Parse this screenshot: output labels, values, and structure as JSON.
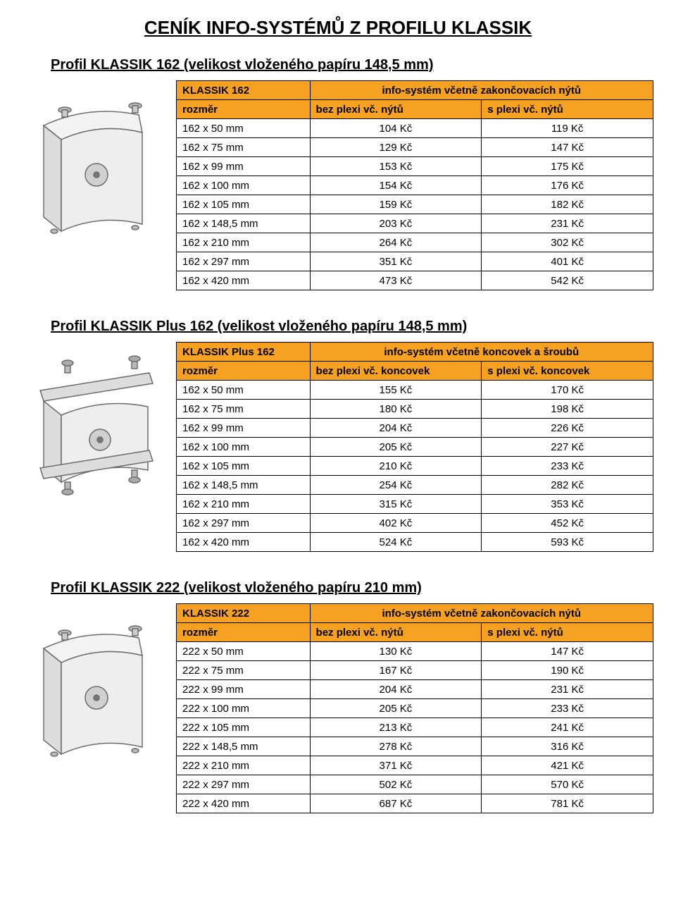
{
  "page_title": "CENÍK INFO-SYSTÉMŮ Z PROFILU KLASSIK",
  "colors": {
    "header_bg": "#f7a120",
    "border": "#000000",
    "text": "#000000",
    "illus_stroke": "#6b6b6b",
    "illus_fill": "#e8e8e8"
  },
  "fonts": {
    "page_title_size": 26,
    "section_title_size": 20,
    "table_size": 15
  },
  "sections": [
    {
      "title": "Profil KLASSIK 162 (velikost vloženého papíru 148,5 mm)",
      "name_label": "KLASSIK 162",
      "rozmer_label": "rozměr",
      "super_header": "info-systém včetně zakončovacích nýtů",
      "col1": "bez plexi vč. nýtů",
      "col2": "s plexi vč. nýtů",
      "rows": [
        {
          "r": "162 x 50 mm",
          "a": "104 Kč",
          "b": "119 Kč"
        },
        {
          "r": "162 x 75 mm",
          "a": "129 Kč",
          "b": "147 Kč"
        },
        {
          "r": "162 x 99 mm",
          "a": "153 Kč",
          "b": "175 Kč"
        },
        {
          "r": "162 x 100 mm",
          "a": "154 Kč",
          "b": "176 Kč"
        },
        {
          "r": "162 x 105 mm",
          "a": "159 Kč",
          "b": "182 Kč"
        },
        {
          "r": "162 x 148,5 mm",
          "a": "203 Kč",
          "b": "231 Kč"
        },
        {
          "r": "162 x 210 mm",
          "a": "264 Kč",
          "b": "302 Kč"
        },
        {
          "r": "162 x 297 mm",
          "a": "351 Kč",
          "b": "401 Kč"
        },
        {
          "r": "162 x 420 mm",
          "a": "473 Kč",
          "b": "542 Kč"
        }
      ],
      "illus": "curved"
    },
    {
      "title": "Profil KLASSIK Plus 162 (velikost vloženého papíru 148,5 mm)",
      "name_label": "KLASSIK Plus 162",
      "rozmer_label": "rozměr",
      "super_header": "info-systém včetně koncovek a šroubů",
      "col1": "bez plexi vč. koncovek",
      "col2": "s plexi vč. koncovek",
      "rows": [
        {
          "r": "162 x 50 mm",
          "a": "155 Kč",
          "b": "170 Kč"
        },
        {
          "r": "162 x 75 mm",
          "a": "180 Kč",
          "b": "198 Kč"
        },
        {
          "r": "162 x 99 mm",
          "a": "204 Kč",
          "b": "226 Kč"
        },
        {
          "r": "162 x 100 mm",
          "a": "205 Kč",
          "b": "227 Kč"
        },
        {
          "r": "162 x 105 mm",
          "a": "210 Kč",
          "b": "233 Kč"
        },
        {
          "r": "162 x 148,5 mm",
          "a": "254 Kč",
          "b": "282 Kč"
        },
        {
          "r": "162 x 210 mm",
          "a": "315 Kč",
          "b": "353 Kč"
        },
        {
          "r": "162 x 297 mm",
          "a": "402 Kč",
          "b": "452 Kč"
        },
        {
          "r": "162 x 420 mm",
          "a": "524 Kč",
          "b": "593 Kč"
        }
      ],
      "illus": "bracket"
    },
    {
      "title": "Profil KLASSIK 222 (velikost vloženého papíru 210 mm)",
      "name_label": "KLASSIK 222",
      "rozmer_label": "rozměr",
      "super_header": "info-systém včetně zakončovacích nýtů",
      "col1": "bez plexi vč. nýtů",
      "col2": "s plexi vč. nýtů",
      "rows": [
        {
          "r": "222 x 50 mm",
          "a": "130 Kč",
          "b": "147 Kč"
        },
        {
          "r": "222 x 75 mm",
          "a": "167 Kč",
          "b": "190 Kč"
        },
        {
          "r": "222 x 99 mm",
          "a": "204 Kč",
          "b": "231 Kč"
        },
        {
          "r": "222 x 100 mm",
          "a": "205 Kč",
          "b": "233 Kč"
        },
        {
          "r": "222 x 105 mm",
          "a": "213 Kč",
          "b": "241 Kč"
        },
        {
          "r": "222 x 148,5 mm",
          "a": "278 Kč",
          "b": "316 Kč"
        },
        {
          "r": "222 x 210 mm",
          "a": "371 Kč",
          "b": "421 Kč"
        },
        {
          "r": "222 x 297 mm",
          "a": "502 Kč",
          "b": "570 Kč"
        },
        {
          "r": "222 x 420 mm",
          "a": "687 Kč",
          "b": "781 Kč"
        }
      ],
      "illus": "curved"
    }
  ]
}
